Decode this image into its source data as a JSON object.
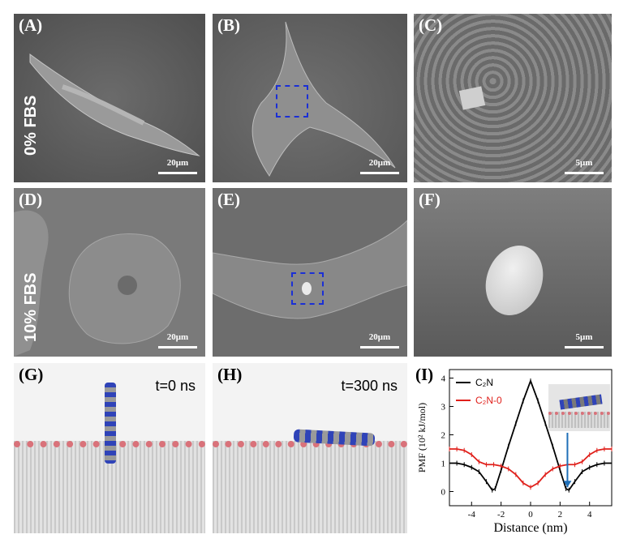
{
  "panels": {
    "A": {
      "label": "(A)",
      "scale": "20μm"
    },
    "B": {
      "label": "(B)",
      "scale": "20μm"
    },
    "C": {
      "label": "(C)",
      "scale": "5μm"
    },
    "D": {
      "label": "(D)",
      "scale": "20μm"
    },
    "E": {
      "label": "(E)",
      "scale": "20μm"
    },
    "F": {
      "label": "(F)",
      "scale": "5μm"
    },
    "G": {
      "label": "(G)",
      "time": "t=0 ns"
    },
    "H": {
      "label": "(H)",
      "time": "t=300 ns"
    },
    "I": {
      "label": "(I)"
    }
  },
  "row_labels": {
    "top": "0% FBS",
    "bottom": "10% FBS"
  },
  "colors": {
    "c2n": "#000000",
    "c2n_o": "#e0201b",
    "arrow": "#1f6fb8",
    "box": "#1a2fd6"
  },
  "chart_data": {
    "type": "line",
    "xlabel": "Distance (nm)",
    "ylabel": "PMF (10² kJ/mol)",
    "xlim": [
      -5.5,
      5.5
    ],
    "ylim": [
      -0.5,
      4.3
    ],
    "xticks": [
      "-4",
      "-2",
      "0",
      "2",
      "4"
    ],
    "yticks": [
      "0",
      "1",
      "2",
      "3",
      "4"
    ],
    "legend_position": "top-left",
    "series": [
      {
        "name": "C₂N",
        "color": "#000000",
        "x": [
          -5.5,
          -5,
          -4.5,
          -4,
          -3.5,
          -3,
          -2.6,
          -2.4,
          -2,
          -1.5,
          -1,
          -0.5,
          0,
          0.5,
          1,
          1.5,
          2,
          2.4,
          2.6,
          3,
          3.5,
          4,
          4.5,
          5,
          5.5
        ],
        "y": [
          1.0,
          1.0,
          0.95,
          0.85,
          0.7,
          0.35,
          0.05,
          0.1,
          0.75,
          1.6,
          2.4,
          3.2,
          3.9,
          3.2,
          2.4,
          1.6,
          0.75,
          0.1,
          0.05,
          0.35,
          0.7,
          0.85,
          0.95,
          1.0,
          1.0
        ]
      },
      {
        "name": "C₂N-0",
        "color": "#e0201b",
        "x": [
          -5.5,
          -5,
          -4.5,
          -4,
          -3.5,
          -3,
          -2.5,
          -2,
          -1.5,
          -1,
          -0.5,
          0,
          0.5,
          1,
          1.5,
          2,
          2.5,
          3,
          3.5,
          4,
          4.5,
          5,
          5.5
        ],
        "y": [
          1.5,
          1.5,
          1.45,
          1.3,
          1.05,
          0.95,
          0.95,
          0.9,
          0.8,
          0.6,
          0.3,
          0.15,
          0.3,
          0.6,
          0.8,
          0.9,
          0.95,
          0.95,
          1.05,
          1.3,
          1.45,
          1.5,
          1.5
        ]
      }
    ]
  }
}
